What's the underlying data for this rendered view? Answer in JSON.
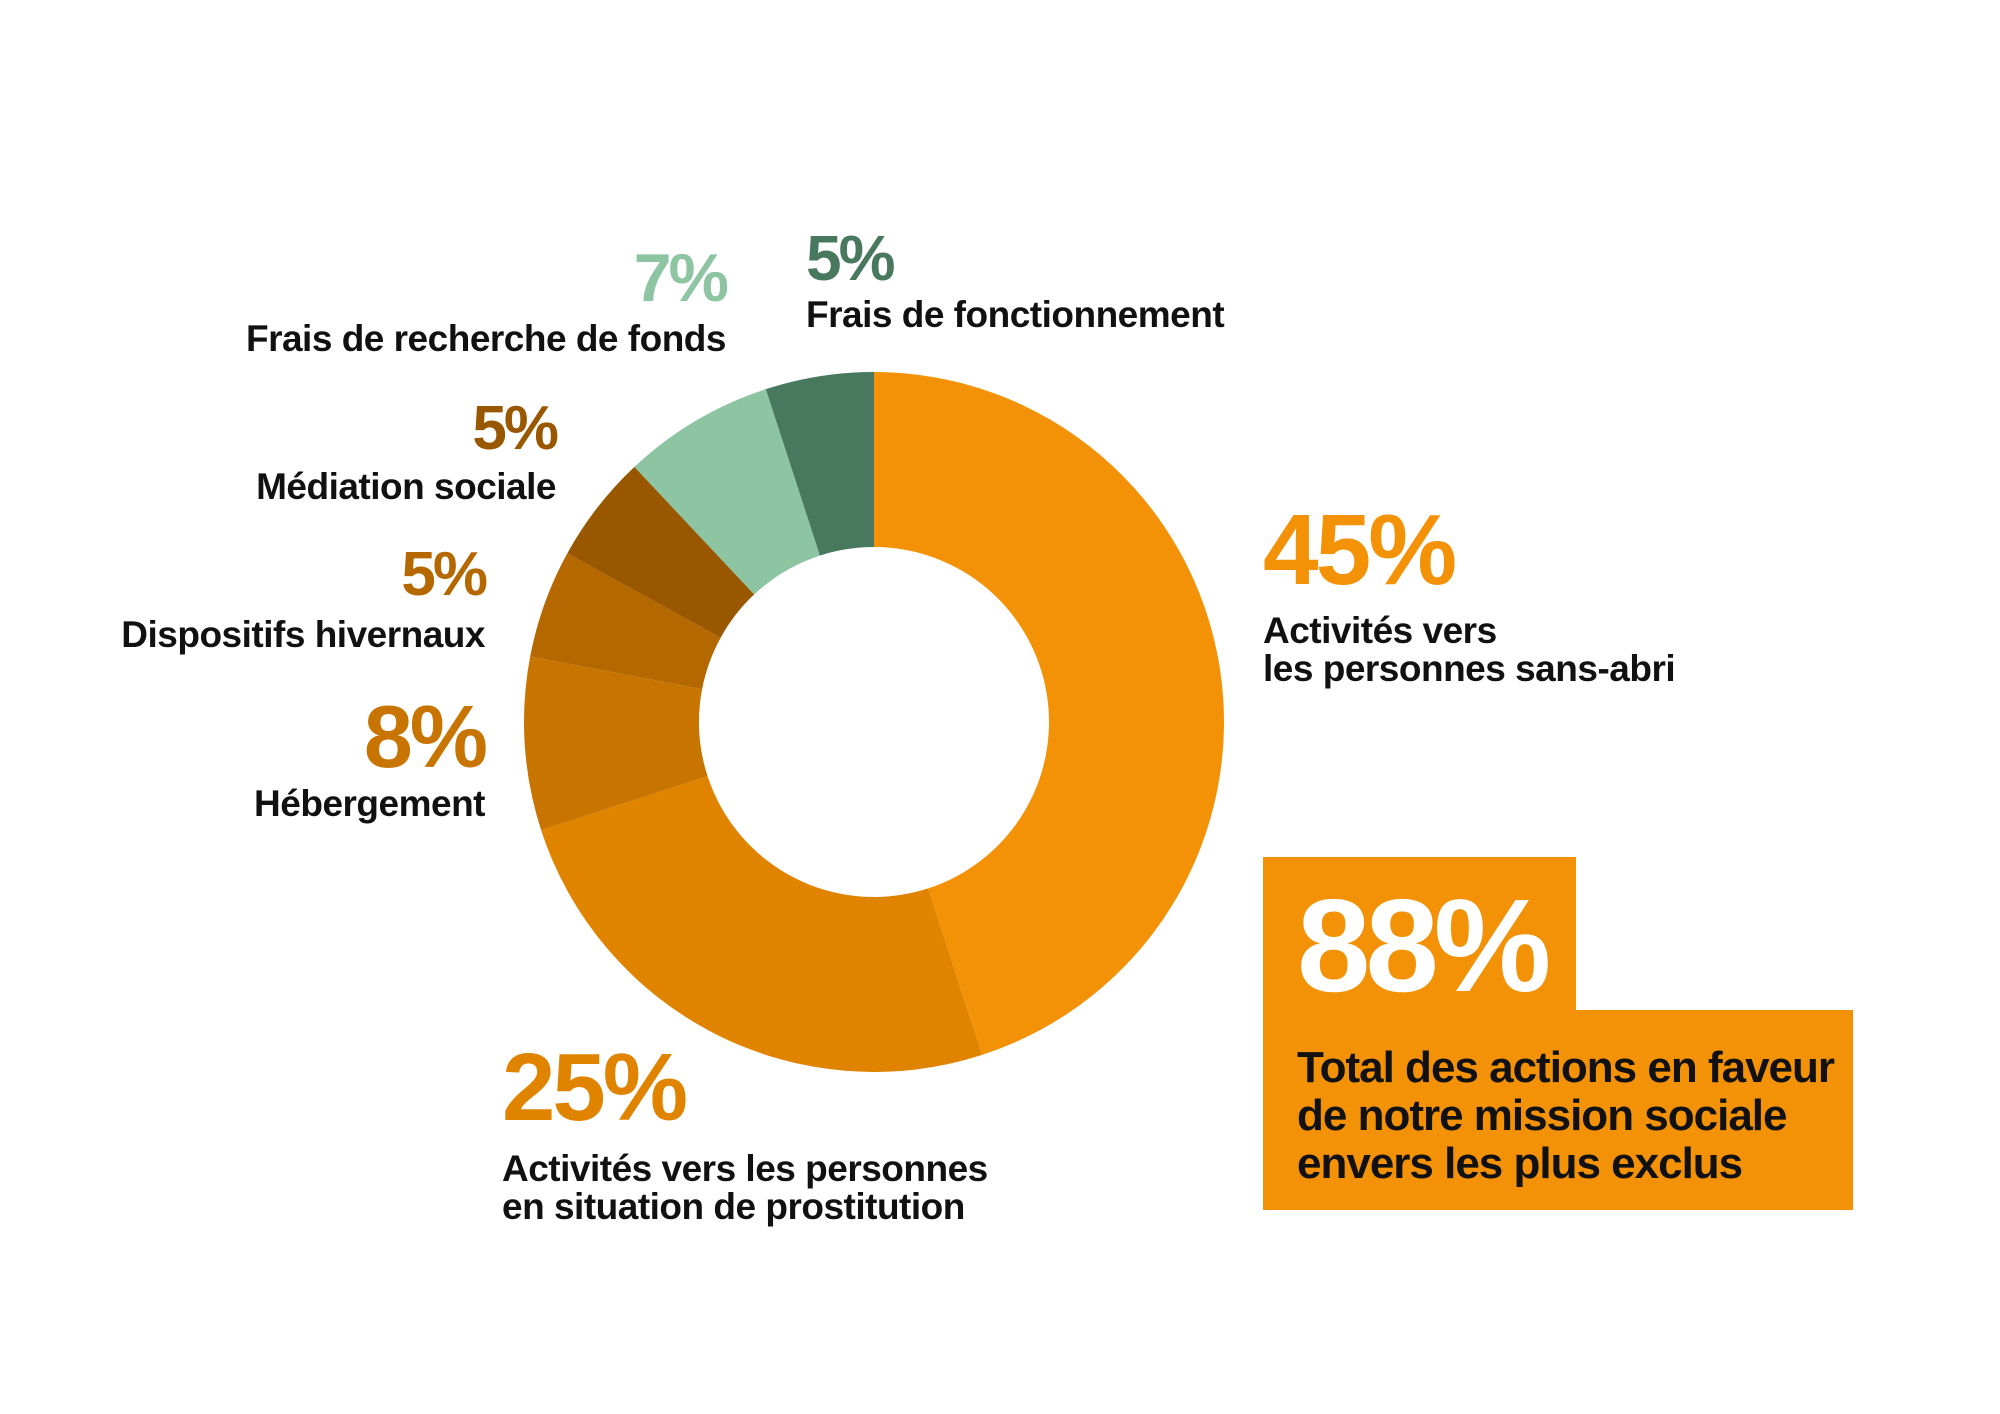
{
  "chart_data": {
    "type": "pie",
    "donut": true,
    "slices": [
      {
        "label": "Activités vers\nles personnes sans-abri",
        "value": 45,
        "display": "45%",
        "color": "#f39206"
      },
      {
        "label": "Activités vers les personnes\nen situation de prostitution",
        "value": 25,
        "display": "25%",
        "color": "#e08400"
      },
      {
        "label": "Hébergement",
        "value": 8,
        "display": "8%",
        "color": "#c87400"
      },
      {
        "label": "Dispositifs hivernaux",
        "value": 5,
        "display": "5%",
        "color": "#b56800"
      },
      {
        "label": "Médiation sociale",
        "value": 5,
        "display": "5%",
        "color": "#995800"
      },
      {
        "label": "Frais de recherche de fonds",
        "value": 7,
        "display": "7%",
        "color": "#8dc4a2"
      },
      {
        "label": "Frais de fonctionnement",
        "value": 5,
        "display": "5%",
        "color": "#48785e"
      }
    ]
  },
  "total": {
    "value": "88%",
    "label": "Total des actions en faveur\nde notre mission sociale\nenvers les plus exclus",
    "box_color": "#f39206"
  }
}
